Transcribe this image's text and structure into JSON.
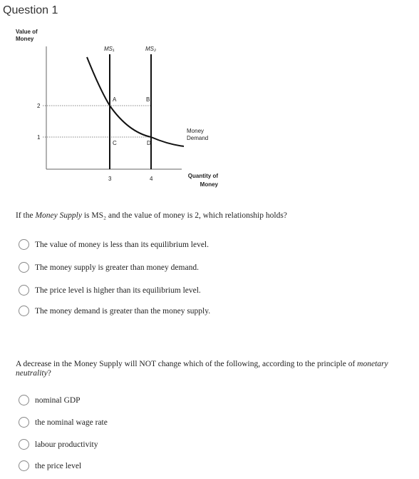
{
  "header": {
    "title": "Question 1"
  },
  "figure": {
    "y_axis_label": [
      "Value of",
      "Money"
    ],
    "x_axis_label": [
      "Quantity of",
      "Money"
    ],
    "y_ticks": [
      2,
      1
    ],
    "x_ticks": [
      3,
      4
    ],
    "curves": {
      "ms1": "MS₁",
      "ms2": "MS₂",
      "demand": [
        "Money",
        "Demand"
      ]
    },
    "points": [
      "A",
      "B",
      "C",
      "D"
    ]
  },
  "questions": [
    {
      "prompt": [
        "If the ",
        "Money Supply",
        " is MS₂ and the value of money is 2, which relationship holds?"
      ],
      "options": [
        "The value of money is less than its equilibrium level.",
        "The money supply is greater than money demand.",
        "The price level is higher than its equilibrium level.",
        "The money demand is greater than the money supply."
      ]
    },
    {
      "prompt": [
        "A decrease in the Money Supply will NOT change which of the following, according to the principle of ",
        "monetary neutrality",
        "?"
      ],
      "options": [
        "nominal GDP",
        "the nominal wage rate",
        "labour productivity",
        "the price level"
      ]
    }
  ]
}
